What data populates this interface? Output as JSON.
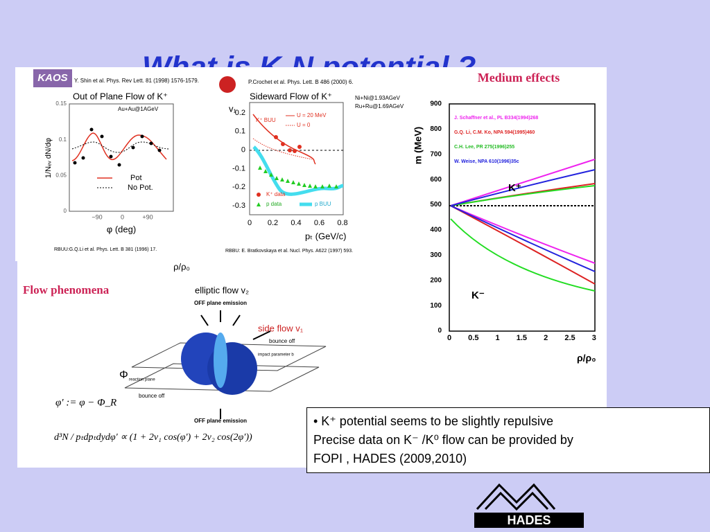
{
  "slide": {
    "title": "What is K-N potential ?",
    "kaos": {
      "logo": "KAOS",
      "reference": "Y. Shin et al. Phys. Rev Lett. 81 (1998) 1576-1579.",
      "title": "Out of Plane Flow of K⁺",
      "system": "Au+Au@1AGeV",
      "ylabel": "1/Nₑᵥ dN/dφ",
      "yticks": [
        "0.15",
        "0.1",
        "0.05",
        "0"
      ],
      "xticks": [
        "−90",
        "0",
        "+90"
      ],
      "xlabel": "φ (deg)",
      "legend": [
        "Pot",
        "No Pot."
      ],
      "footer": "RBUU:G.Q.Li et al. Phys. Lett. B 381 (1996) 17."
    },
    "fopi": {
      "reference": "P.Crochet et al. Phys. Lett. B 486 (2000) 6.",
      "title": "Sideward Flow of K⁺",
      "systems": [
        "Ni+Ni@1.93AGeV",
        "Ru+Ru@1.69AGeV"
      ],
      "ylabel": "v₁",
      "yticks": [
        "0.2",
        "0.1",
        "0",
        "-0.1",
        "-0.2",
        "-0.3"
      ],
      "xticks": [
        "0",
        "0.2",
        "0.4",
        "0.6",
        "0.8"
      ],
      "xlabel": "pₜ (GeV/c)",
      "curve_labels": [
        "K⁺ BUU",
        "U = 20 MeV",
        "U = 0"
      ],
      "legend": [
        "K⁺ data",
        "p data",
        "p BUU"
      ],
      "footer": "RBBU: E. Bratkovskaya et al. Nucl. Phys. A622 (1997) 593."
    },
    "xlabel_below": "ρ/ρ₀",
    "medium": {
      "title": "Medium effects",
      "ylabel": "m  (MeV)",
      "yticks": [
        "900",
        "800",
        "700",
        "600",
        "500",
        "400",
        "300",
        "200",
        "100",
        "0"
      ],
      "xticks": [
        "0",
        "0.5",
        "1",
        "1.5",
        "2",
        "2.5",
        "3"
      ],
      "xlabel": "ρ/ρ₀",
      "legend": [
        "J. Schaffner et al., PL B334(1994)268",
        "G.Q. Li, C.M. Ko, NPA 594(1995)460",
        "C.H. Lee, PR 275(1996)255",
        "W. Weise, NPA 610(1996)35c"
      ],
      "kplus": "K⁺",
      "kminus": "K⁻"
    },
    "flow": {
      "title": "Flow phenomena",
      "elliptic": "elliptic flow v₂",
      "off_top": "OFF plane emission",
      "side": "side flow v₁",
      "bounce_right": "bounce off",
      "impact": "impact parameter b",
      "phi": "Φ",
      "reaction_plane": "reaction plane",
      "bounce_left": "bounce off",
      "off_bottom": "OFF plane emission",
      "formula1": "φ′ := φ − Φ_R",
      "formula2": "d³N / pₜdpₜdydφ′ ∝ (1 + 2v₁ cos(φ′) + 2v₂ cos(2φ′))"
    },
    "bullets": [
      "• K⁺ potential seems to be slightly repulsive",
      "Precise data on K⁻ /K⁰ flow can be provided by",
      "FOPI , HADES (2009,2010)"
    ],
    "logo": "HADES"
  }
}
